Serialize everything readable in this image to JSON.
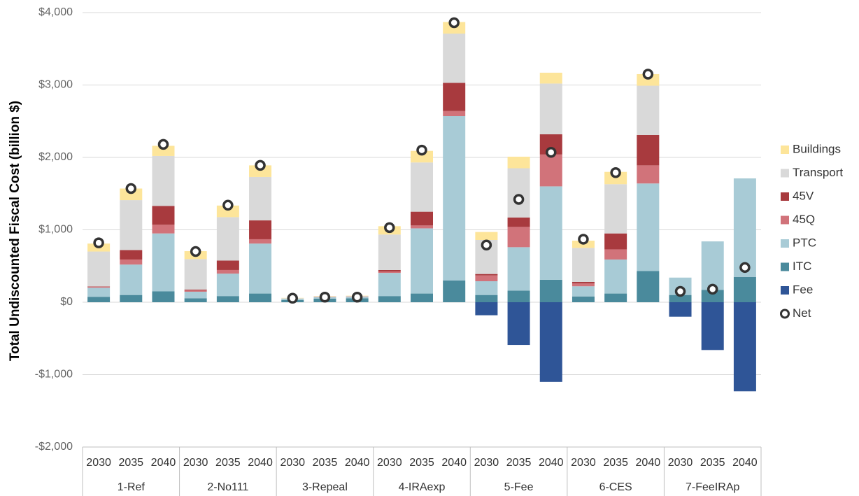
{
  "chart_data": {
    "type": "bar",
    "stacked": true,
    "y_axis_label": "Total Undiscounted Fiscal Cost (billion $)",
    "groups": [
      "1-Ref",
      "2-No111",
      "3-Repeal",
      "4-IRAexp",
      "5-Fee",
      "6-CES",
      "7-FeeIRAp"
    ],
    "categories": [
      "2030",
      "2035",
      "2040",
      "2030",
      "2035",
      "2040",
      "2030",
      "2035",
      "2040",
      "2030",
      "2035",
      "2040",
      "2030",
      "2035",
      "2040",
      "2030",
      "2035",
      "2040",
      "2030",
      "2035",
      "2040"
    ],
    "ylim": [
      -2000,
      4000
    ],
    "yticks": [
      {
        "value": -2000,
        "label": "-$2,000"
      },
      {
        "value": -1000,
        "label": "-$1,000"
      },
      {
        "value": 0,
        "label": "$0"
      },
      {
        "value": 1000,
        "label": "$1,000"
      },
      {
        "value": 2000,
        "label": "$2,000"
      },
      {
        "value": 3000,
        "label": "$3,000"
      },
      {
        "value": 4000,
        "label": "$4,000"
      }
    ],
    "grid": true,
    "legend": "right",
    "series": [
      {
        "name": "Buildings",
        "color": "#fde59a",
        "values": [
          110,
          160,
          140,
          110,
          160,
          160,
          5,
          5,
          5,
          115,
          160,
          160,
          110,
          160,
          150,
          100,
          170,
          160,
          0,
          0,
          0
        ]
      },
      {
        "name": "Transport",
        "color": "#d9d9d9",
        "values": [
          480,
          690,
          690,
          420,
          600,
          600,
          5,
          5,
          5,
          490,
          680,
          680,
          470,
          680,
          700,
          470,
          680,
          680,
          0,
          0,
          0
        ]
      },
      {
        "name": "45V",
        "color": "#a83a3e",
        "values": [
          5,
          130,
          260,
          10,
          130,
          260,
          0,
          0,
          0,
          20,
          190,
          390,
          20,
          130,
          280,
          20,
          220,
          420,
          0,
          0,
          0
        ]
      },
      {
        "name": "45Q",
        "color": "#d1737a",
        "values": [
          15,
          70,
          120,
          20,
          50,
          60,
          0,
          5,
          5,
          20,
          40,
          70,
          80,
          280,
          440,
          40,
          140,
          250,
          0,
          0,
          0
        ]
      },
      {
        "name": "PTC",
        "color": "#a8cbd6",
        "values": [
          125,
          420,
          800,
          90,
          310,
          690,
          20,
          20,
          20,
          320,
          900,
          2270,
          190,
          600,
          1290,
          140,
          470,
          1210,
          240,
          670,
          1360
        ]
      },
      {
        "name": "ITC",
        "color": "#4a8a9c",
        "values": [
          75,
          100,
          150,
          55,
          85,
          120,
          30,
          50,
          55,
          85,
          120,
          300,
          100,
          160,
          310,
          80,
          120,
          430,
          100,
          170,
          350
        ]
      },
      {
        "name": "Fee",
        "color": "#2f5597",
        "values": [
          0,
          0,
          0,
          0,
          0,
          0,
          0,
          0,
          0,
          0,
          0,
          0,
          -180,
          -590,
          -1100,
          0,
          0,
          0,
          -200,
          -660,
          -1230
        ]
      },
      {
        "name": "Net",
        "type": "scatter",
        "color": "#333333",
        "values": [
          820,
          1570,
          2180,
          700,
          1340,
          1890,
          55,
          70,
          70,
          1030,
          2100,
          3860,
          790,
          1420,
          2070,
          870,
          1790,
          3150,
          150,
          180,
          480
        ]
      }
    ]
  }
}
